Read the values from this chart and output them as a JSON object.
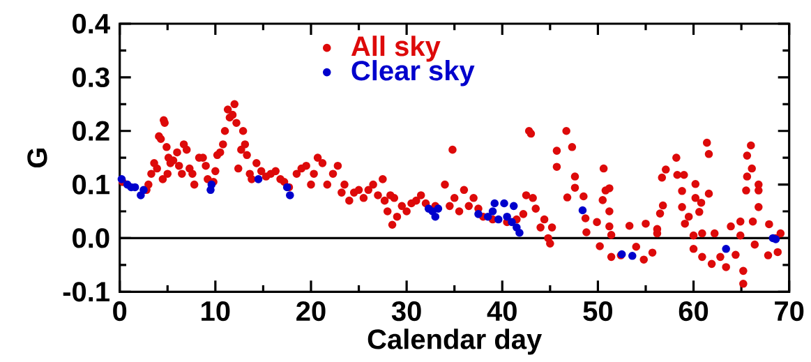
{
  "chart_data": {
    "type": "scatter",
    "xlabel": "Calendar day",
    "ylabel": "G",
    "xlim": [
      0,
      70
    ],
    "ylim": [
      -0.1,
      0.4
    ],
    "xticks": [
      0,
      10,
      20,
      30,
      40,
      50,
      60,
      70
    ],
    "yticks": [
      {
        "value": -0.1,
        "label": "-0.1"
      },
      {
        "value": 0,
        "label": "0.0"
      },
      {
        "value": 0.1,
        "label": "0.1"
      },
      {
        "value": 0.2,
        "label": "0.2"
      },
      {
        "value": 0.3,
        "label": "0.3"
      },
      {
        "value": 0.4,
        "label": "0.4"
      }
    ],
    "marker": "circle",
    "legend": "top",
    "grid": false,
    "ref_lines": [
      {
        "axis": "y",
        "value": 0,
        "color": "#000000"
      }
    ],
    "series": [
      {
        "name": "All sky",
        "color": "#dd0a0a",
        "x": [
          0.3,
          2.8,
          3.0,
          3.3,
          3.6,
          3.9,
          4.1,
          4.3,
          4.6,
          4.7,
          4.9,
          5.1,
          5.0,
          4.5,
          5.3,
          5.6,
          6.0,
          6.2,
          6.5,
          6.7,
          7.0,
          7.3,
          7.6,
          7.8,
          8.3,
          8.7,
          9.0,
          9.2,
          9.8,
          10.0,
          10.2,
          10.5,
          10.8,
          11.0,
          11.3,
          11.5,
          11.8,
          12.0,
          12.2,
          12.4,
          12.7,
          12.9,
          13.1,
          13.3,
          13.6,
          13.8,
          14.3,
          14.8,
          15.3,
          15.8,
          16.3,
          16.8,
          17.2,
          17.7,
          18.5,
          19.0,
          19.5,
          20.0,
          20.3,
          20.7,
          21.2,
          21.7,
          22.3,
          22.8,
          23.2,
          23.5,
          24.0,
          24.5,
          25.0,
          25.5,
          26.0,
          26.5,
          27.0,
          27.5,
          27.7,
          28.0,
          28.3,
          28.7,
          28.5,
          29.0,
          29.5,
          30.0,
          30.5,
          31.0,
          31.5,
          32.0,
          33.0,
          34.0,
          34.5,
          34.8,
          35.0,
          35.5,
          36.0,
          36.5,
          37.0,
          37.5,
          38.0,
          39.0,
          40.5,
          41.5,
          42.2,
          42.5,
          42.8,
          43.0,
          43.2,
          43.5,
          44.0,
          44.4,
          44.8,
          45.0,
          45.2,
          45.7,
          45.7,
          46.7,
          47.3,
          46.8,
          47.6,
          47.6,
          48.5,
          48.7,
          48.8,
          49.9,
          50.2,
          50.6,
          50.8,
          51.2,
          50.5,
          51.2,
          51.2,
          51.4,
          51.4,
          52.4,
          53.3,
          54.0,
          54.8,
          55.0,
          55.7,
          56.2,
          56.2,
          56.5,
          56.8,
          56.7,
          57.1,
          58.2,
          58.3,
          59.0,
          58.8,
          58.8,
          59.1,
          59.5,
          60.2,
          60.2,
          60.8,
          60.6,
          60.9,
          61.4,
          61.6,
          61.6,
          60.0,
          60.0,
          60.9,
          61.9,
          62.2,
          62.8,
          63.4,
          63.9,
          64.4,
          64.9,
          64.9,
          65.2,
          65.2,
          65.5,
          65.6,
          66.0,
          66.1,
          65.6,
          66.8,
          66.8,
          66.8,
          66.2,
          66.4,
          67.8,
          67.9,
          68.6,
          68.8,
          69.1
        ],
        "values": [
          0.105,
          0.09,
          0.1,
          0.12,
          0.14,
          0.13,
          0.19,
          0.185,
          0.22,
          0.215,
          0.17,
          0.15,
          0.12,
          0.11,
          0.14,
          0.145,
          0.16,
          0.135,
          0.12,
          0.175,
          0.165,
          0.13,
          0.12,
          0.1,
          0.15,
          0.15,
          0.135,
          0.11,
          0.105,
          0.125,
          0.155,
          0.16,
          0.175,
          0.2,
          0.24,
          0.225,
          0.23,
          0.25,
          0.215,
          0.13,
          0.165,
          0.2,
          0.175,
          0.155,
          0.12,
          0.11,
          0.14,
          0.125,
          0.115,
          0.12,
          0.125,
          0.11,
          0.105,
          0.095,
          0.12,
          0.13,
          0.135,
          0.1,
          0.12,
          0.15,
          0.14,
          0.1,
          0.12,
          0.135,
          0.085,
          0.1,
          0.07,
          0.085,
          0.09,
          0.075,
          0.09,
          0.1,
          0.08,
          0.11,
          0.07,
          0.05,
          0.08,
          0.075,
          0.025,
          0.04,
          0.06,
          0.05,
          0.065,
          0.07,
          0.08,
          0.065,
          0.06,
          0.1,
          0.06,
          0.165,
          0.075,
          0.05,
          0.09,
          0.06,
          0.075,
          0.055,
          0.04,
          0.035,
          0.03,
          0.035,
          0.045,
          0.08,
          0.2,
          0.195,
          0.075,
          0.055,
          0.02,
          0.035,
          0.0,
          -0.01,
          0.02,
          0.163,
          0.133,
          0.2,
          0.17,
          0.076,
          0.115,
          0.094,
          0.078,
          0.037,
          0.011,
          0.03,
          -0.015,
          0.13,
          0.089,
          0.093,
          0.071,
          0.05,
          0.022,
          -0.035,
          0.006,
          -0.032,
          0.023,
          -0.016,
          -0.04,
          0.027,
          -0.027,
          0.009,
          0.017,
          0.046,
          0.061,
          0.113,
          0.128,
          0.15,
          0.118,
          0.118,
          0.088,
          0.058,
          0.027,
          0.04,
          0.101,
          0.075,
          0.066,
          0.049,
          0.009,
          0.178,
          0.157,
          0.083,
          0.005,
          -0.02,
          -0.035,
          -0.048,
          0.009,
          -0.035,
          -0.054,
          0.022,
          -0.031,
          0.031,
          0.005,
          -0.061,
          -0.085,
          0.089,
          0.154,
          0.173,
          0.13,
          0.115,
          0.089,
          0.058,
          0.1,
          0.031,
          -0.012,
          -0.032,
          0.026,
          0.0,
          -0.026,
          0.009
        ]
      },
      {
        "name": "Clear sky",
        "color": "#0000cc",
        "x": [
          0.2,
          0.8,
          1.2,
          1.6,
          2.2,
          2.5,
          9.5,
          9.6,
          14.5,
          17.5,
          17.8,
          32.3,
          32.7,
          33.0,
          33.3,
          37.5,
          38.5,
          39.0,
          39.2,
          39.6,
          40.2,
          40.5,
          41.0,
          41.2,
          41.5,
          41.8,
          48.4,
          52.5,
          53.6,
          63.4,
          68.3,
          68.6
        ],
        "values": [
          0.11,
          0.1,
          0.095,
          0.095,
          0.08,
          0.09,
          0.09,
          0.1,
          0.11,
          0.095,
          0.08,
          0.055,
          0.05,
          0.04,
          0.055,
          0.045,
          0.04,
          0.05,
          0.065,
          0.035,
          0.065,
          0.04,
          0.03,
          0.06,
          0.02,
          0.01,
          0.052,
          -0.03,
          -0.033,
          -0.02,
          0.0,
          -0.002
        ]
      }
    ]
  }
}
